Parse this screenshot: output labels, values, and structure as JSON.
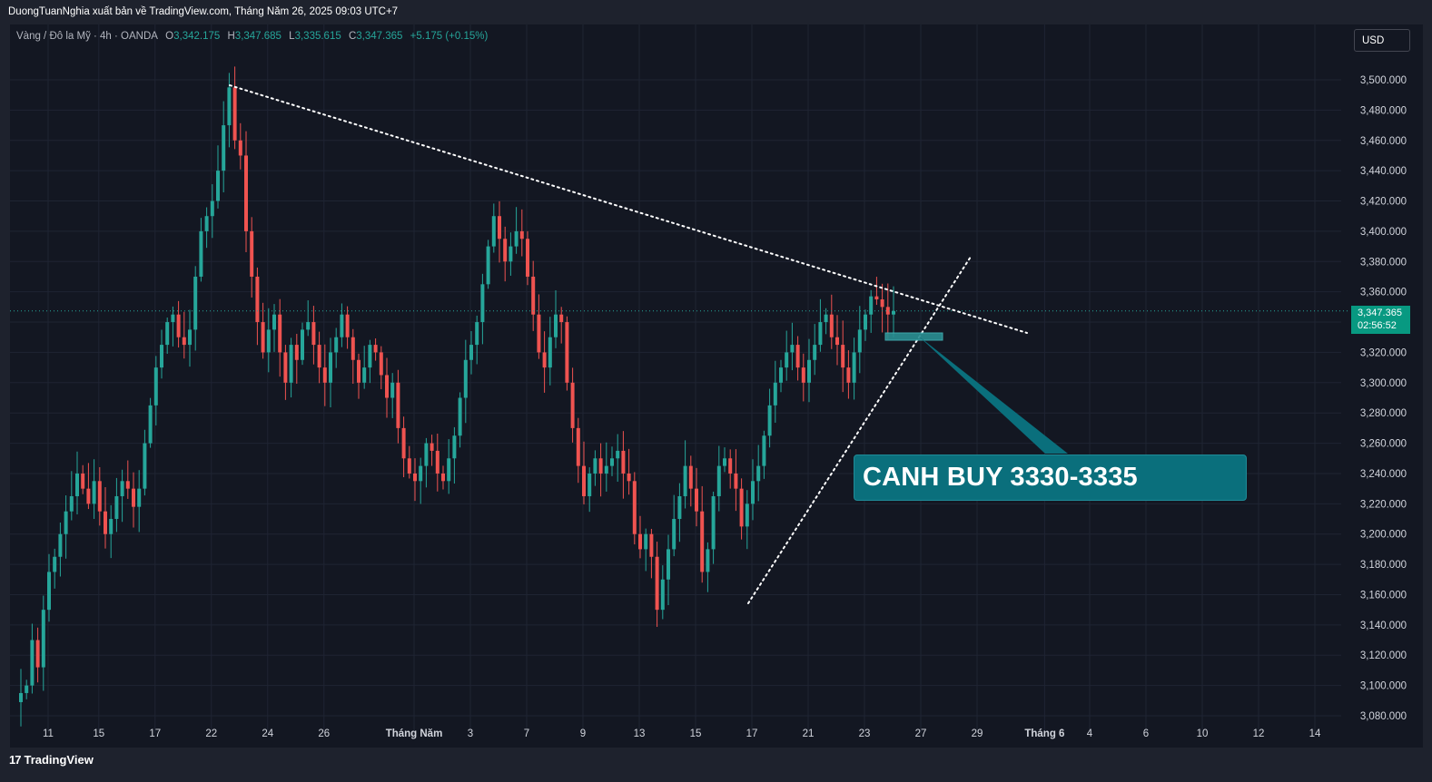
{
  "header": {
    "publisher_line": "DuongTuanNghia xuất bản về TradingView.com, Tháng Năm 26, 2025 09:03 UTC+7"
  },
  "legend": {
    "symbol": "Vàng / Đô la Mỹ · 4h · OANDA",
    "o_label": "O",
    "o_value": "3,342.175",
    "h_label": "H",
    "h_value": "3,347.685",
    "l_label": "L",
    "l_value": "3,335.615",
    "c_label": "C",
    "c_value": "3,347.365",
    "change": "+5.175 (+0.15%)"
  },
  "currency_button": {
    "label": "USD"
  },
  "price_tag": {
    "price": "3,347.365",
    "countdown": "02:56:52"
  },
  "annotation": {
    "text": "CANH BUY 3330-3335"
  },
  "footer": {
    "logo_mark": "17",
    "brand": "TradingView"
  },
  "colors": {
    "background": "#131722",
    "frame": "#1e222d",
    "up": "#26a69a",
    "down": "#ef5350",
    "grid": "#1f2433",
    "callout": "#0a6f7c",
    "price_line": "#26a69a",
    "price_tag": "#089981"
  },
  "chart_data": {
    "type": "candlestick",
    "title": "Vàng / Đô la Mỹ · 4h · OANDA",
    "y_range": [
      3080,
      3520
    ],
    "y_ticks": [
      3080,
      3100,
      3120,
      3140,
      3160,
      3180,
      3200,
      3220,
      3240,
      3260,
      3280,
      3300,
      3320,
      3340,
      3360,
      3380,
      3400,
      3420,
      3440,
      3460,
      3480,
      3500
    ],
    "y_tick_labels": [
      "3,080.000",
      "3,100.000",
      "3,120.000",
      "3,140.000",
      "3,160.000",
      "3,180.000",
      "3,200.000",
      "3,220.000",
      "3,240.000",
      "3,260.000",
      "3,280.000",
      "3,300.000",
      "3,320.000",
      "3,340.000",
      "3,360.000",
      "3,380.000",
      "3,400.000",
      "3,420.000",
      "3,440.000",
      "3,460.000",
      "3,480.000",
      "3,500.000"
    ],
    "x_tick_labels": [
      "11",
      "15",
      "17",
      "22",
      "24",
      "26",
      "Tháng Năm",
      "3",
      "7",
      "9",
      "13",
      "15",
      "17",
      "21",
      "23",
      "27",
      "29",
      "Tháng 6",
      "4",
      "6",
      "10",
      "12",
      "14"
    ],
    "x_tick_index": [
      0,
      9,
      19,
      29,
      39,
      49,
      65,
      75,
      85,
      95,
      105,
      115,
      125,
      135,
      145,
      155,
      165,
      177,
      185,
      195,
      205,
      215,
      225
    ],
    "bold_tick_labels": [
      "Tháng Năm",
      "Tháng 6"
    ],
    "current_price": 3347.365,
    "closes": [
      3095,
      3100,
      3130,
      3112,
      3150,
      3175,
      3185,
      3200,
      3215,
      3225,
      3240,
      3230,
      3220,
      3235,
      3215,
      3200,
      3210,
      3225,
      3235,
      3230,
      3218,
      3230,
      3260,
      3285,
      3310,
      3325,
      3340,
      3345,
      3330,
      3325,
      3335,
      3370,
      3400,
      3410,
      3420,
      3440,
      3470,
      3495,
      3460,
      3450,
      3400,
      3370,
      3340,
      3320,
      3335,
      3345,
      3320,
      3300,
      3325,
      3315,
      3335,
      3340,
      3325,
      3310,
      3300,
      3320,
      3330,
      3345,
      3330,
      3315,
      3300,
      3310,
      3325,
      3320,
      3305,
      3290,
      3300,
      3270,
      3250,
      3240,
      3235,
      3245,
      3260,
      3255,
      3240,
      3235,
      3250,
      3265,
      3290,
      3315,
      3325,
      3340,
      3365,
      3390,
      3410,
      3395,
      3380,
      3390,
      3400,
      3395,
      3370,
      3345,
      3320,
      3310,
      3330,
      3345,
      3340,
      3300,
      3270,
      3245,
      3225,
      3240,
      3250,
      3240,
      3245,
      3250,
      3255,
      3240,
      3235,
      3200,
      3190,
      3200,
      3185,
      3150,
      3170,
      3190,
      3210,
      3225,
      3245,
      3230,
      3215,
      3175,
      3190,
      3225,
      3245,
      3250,
      3240,
      3230,
      3205,
      3220,
      3235,
      3245,
      3265,
      3285,
      3300,
      3310,
      3320,
      3325,
      3310,
      3300,
      3315,
      3325,
      3340,
      3345,
      3330,
      3325,
      3310,
      3300,
      3320,
      3335,
      3345,
      3357,
      3355,
      3350,
      3345,
      3347.365
    ],
    "trendlines": [
      {
        "name": "resistance",
        "from": [
          3498,
          0.0
        ],
        "to": [
          3335,
          1.0
        ]
      },
      {
        "name": "support",
        "from": [
          3155,
          0.0
        ],
        "to": [
          3385,
          1.0
        ]
      }
    ]
  }
}
